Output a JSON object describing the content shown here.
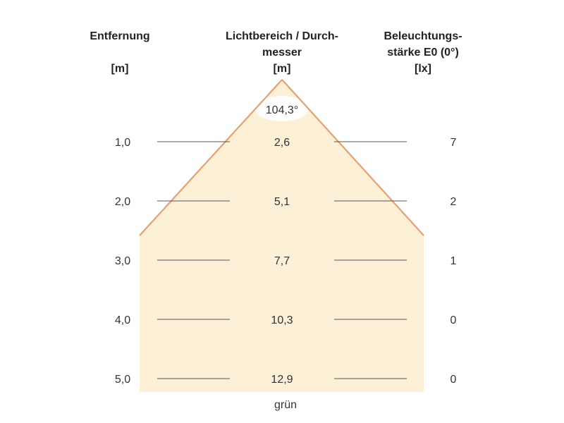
{
  "headers": {
    "distance": {
      "line1": "Entfernung",
      "line2": "",
      "unit": "[m]"
    },
    "light_area": {
      "line1": "Lichtbereich / Durch-",
      "line2": "messer",
      "unit": "[m]"
    },
    "illuminance": {
      "line1": "Beleuchtungs-",
      "line2": "stärke E0 (0°)",
      "unit": "[lx]"
    }
  },
  "beam_angle": "104,3°",
  "rows": [
    {
      "distance": "1,0",
      "diameter": "2,6",
      "illuminance": "7"
    },
    {
      "distance": "2,0",
      "diameter": "5,1",
      "illuminance": "2"
    },
    {
      "distance": "3,0",
      "diameter": "7,7",
      "illuminance": "1"
    },
    {
      "distance": "4,0",
      "diameter": "10,3",
      "illuminance": "0"
    },
    {
      "distance": "5,0",
      "diameter": "12,9",
      "illuminance": "0"
    }
  ],
  "color_label": "grün",
  "colors": {
    "beam_fill": "#fcf1d6",
    "beam_edge": "#e8a070",
    "line": "#555555"
  }
}
